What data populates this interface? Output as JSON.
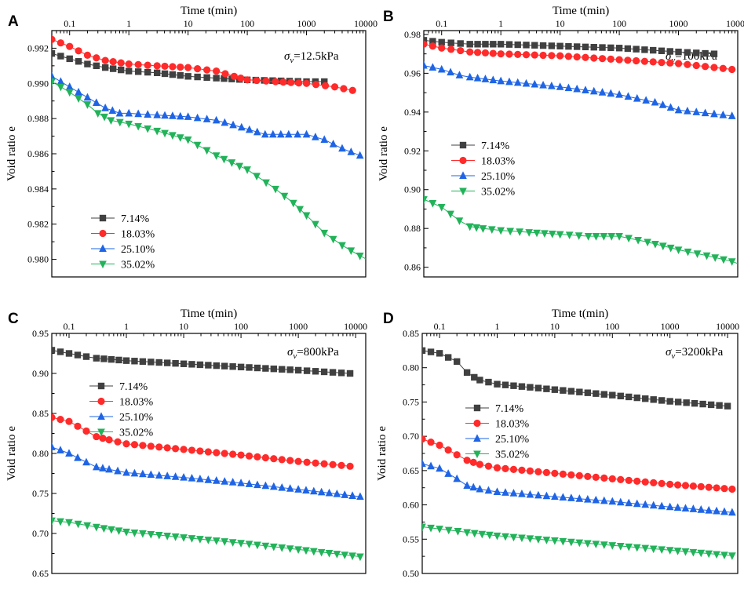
{
  "figure": {
    "colors": {
      "s714": "#404040",
      "s1803": "#ff2b2b",
      "s2510": "#1e64e6",
      "s3502": "#22b35a"
    }
  },
  "chart_data": [
    {
      "id": "A",
      "type": "line",
      "panel_label": "A",
      "title": "",
      "xlabel": "Time t(min)",
      "ylabel": "Void ratio e",
      "xscale": "log",
      "xlim": [
        0.05,
        10000
      ],
      "ylim": [
        0.979,
        0.993
      ],
      "xticks": [
        0.1,
        1,
        10,
        100,
        1000,
        10000
      ],
      "xtick_labels": [
        "0.1",
        "1",
        "10",
        "100",
        "1000",
        "10000"
      ],
      "yticks": [
        0.98,
        0.982,
        0.984,
        0.986,
        0.988,
        0.99,
        0.992
      ],
      "ytick_labels": [
        "0.980",
        "0.982",
        "0.984",
        "0.986",
        "0.988",
        "0.990",
        "0.992"
      ],
      "annotation": {
        "symbol": "σ",
        "subscript": "v",
        "text": "=12.5kPa"
      },
      "legend_position": "bottom-left",
      "series": [
        {
          "name": "7.14%",
          "marker": "square",
          "color": "#404040",
          "points": [
            [
              0.05,
              0.9917
            ],
            [
              0.1,
              0.9914
            ],
            [
              0.2,
              0.9911
            ],
            [
              0.4,
              0.9909
            ],
            [
              1,
              0.9907
            ],
            [
              3,
              0.9906
            ],
            [
              10,
              0.9904
            ],
            [
              30,
              0.9903
            ],
            [
              100,
              0.9902
            ],
            [
              1000,
              0.9901
            ],
            [
              2000,
              0.9901
            ]
          ]
        },
        {
          "name": "18.03%",
          "marker": "circle",
          "color": "#ff2b2b",
          "points": [
            [
              0.05,
              0.9925
            ],
            [
              0.1,
              0.9921
            ],
            [
              0.2,
              0.9916
            ],
            [
              0.4,
              0.9913
            ],
            [
              1,
              0.9911
            ],
            [
              3,
              0.991
            ],
            [
              10,
              0.9909
            ],
            [
              30,
              0.9907
            ],
            [
              60,
              0.9904
            ],
            [
              100,
              0.9902
            ],
            [
              300,
              0.9901
            ],
            [
              1000,
              0.99
            ],
            [
              3000,
              0.9898
            ],
            [
              6000,
              0.9896
            ]
          ]
        },
        {
          "name": "25.10%",
          "marker": "triangle-up",
          "color": "#1e64e6",
          "points": [
            [
              0.05,
              0.9904
            ],
            [
              0.1,
              0.9898
            ],
            [
              0.2,
              0.9892
            ],
            [
              0.4,
              0.9886
            ],
            [
              0.7,
              0.9883
            ],
            [
              1,
              0.9883
            ],
            [
              3,
              0.9882
            ],
            [
              10,
              0.9881
            ],
            [
              30,
              0.9879
            ],
            [
              80,
              0.9875
            ],
            [
              200,
              0.9871
            ],
            [
              500,
              0.9871
            ],
            [
              1000,
              0.9871
            ],
            [
              2000,
              0.9868
            ],
            [
              4000,
              0.9863
            ],
            [
              8000,
              0.9859
            ]
          ]
        },
        {
          "name": "35.02%",
          "marker": "triangle-down",
          "color": "#22b35a",
          "points": [
            [
              0.05,
              0.9901
            ],
            [
              0.1,
              0.9895
            ],
            [
              0.2,
              0.9888
            ],
            [
              0.3,
              0.9883
            ],
            [
              0.5,
              0.9879
            ],
            [
              1,
              0.9877
            ],
            [
              3,
              0.9873
            ],
            [
              10,
              0.9868
            ],
            [
              30,
              0.9859
            ],
            [
              100,
              0.9851
            ],
            [
              300,
              0.984
            ],
            [
              600,
              0.9832
            ],
            [
              1000,
              0.9825
            ],
            [
              2000,
              0.9815
            ],
            [
              4000,
              0.9808
            ],
            [
              8000,
              0.9802
            ],
            [
              12000,
              0.9799
            ]
          ]
        }
      ]
    },
    {
      "id": "B",
      "type": "line",
      "panel_label": "B",
      "title": "",
      "xlabel": "Time t(min)",
      "ylabel": "Void ratio e",
      "xscale": "log",
      "xlim": [
        0.05,
        10000
      ],
      "ylim": [
        0.855,
        0.982
      ],
      "xticks": [
        0.1,
        1,
        10,
        100,
        1000,
        10000
      ],
      "xtick_labels": [
        "0.1",
        "1",
        "10",
        "100",
        "1000",
        "10000"
      ],
      "yticks": [
        0.86,
        0.88,
        0.9,
        0.92,
        0.94,
        0.96,
        0.98
      ],
      "ytick_labels": [
        "0.86",
        "0.88",
        "0.90",
        "0.92",
        "0.94",
        "0.96",
        "0.98"
      ],
      "annotation": {
        "symbol": "σ",
        "subscript": "v",
        "text": "=100kPa"
      },
      "legend_position": "middle-left",
      "series": [
        {
          "name": "7.14%",
          "marker": "square",
          "color": "#404040",
          "points": [
            [
              0.05,
              0.977
            ],
            [
              0.1,
              0.976
            ],
            [
              0.3,
              0.975
            ],
            [
              1,
              0.975
            ],
            [
              10,
              0.974
            ],
            [
              100,
              0.973
            ],
            [
              1000,
              0.971
            ],
            [
              4000,
              0.97
            ]
          ]
        },
        {
          "name": "18.03%",
          "marker": "circle",
          "color": "#ff2b2b",
          "points": [
            [
              0.05,
              0.975
            ],
            [
              0.1,
              0.973
            ],
            [
              0.3,
              0.971
            ],
            [
              1,
              0.97
            ],
            [
              10,
              0.969
            ],
            [
              100,
              0.967
            ],
            [
              1000,
              0.965
            ],
            [
              8000,
              0.962
            ]
          ]
        },
        {
          "name": "25.10%",
          "marker": "triangle-up",
          "color": "#1e64e6",
          "points": [
            [
              0.05,
              0.964
            ],
            [
              0.1,
              0.962
            ],
            [
              0.2,
              0.959
            ],
            [
              0.3,
              0.958
            ],
            [
              1,
              0.956
            ],
            [
              10,
              0.953
            ],
            [
              100,
              0.949
            ],
            [
              400,
              0.945
            ],
            [
              1000,
              0.941
            ],
            [
              8000,
              0.938
            ]
          ]
        },
        {
          "name": "35.02%",
          "marker": "triangle-down",
          "color": "#22b35a",
          "points": [
            [
              0.05,
              0.895
            ],
            [
              0.1,
              0.891
            ],
            [
              0.2,
              0.884
            ],
            [
              0.3,
              0.881
            ],
            [
              0.5,
              0.88
            ],
            [
              1,
              0.879
            ],
            [
              3,
              0.878
            ],
            [
              10,
              0.877
            ],
            [
              30,
              0.876
            ],
            [
              100,
              0.876
            ],
            [
              300,
              0.873
            ],
            [
              1000,
              0.869
            ],
            [
              3000,
              0.866
            ],
            [
              8000,
              0.863
            ],
            [
              12000,
              0.861
            ]
          ]
        }
      ]
    },
    {
      "id": "C",
      "type": "line",
      "panel_label": "C",
      "title": "",
      "xlabel": "Time t(min)",
      "ylabel": "Void ratio e",
      "xscale": "log",
      "xlim": [
        0.05,
        15000
      ],
      "ylim": [
        0.65,
        0.95
      ],
      "xticks": [
        0.1,
        1,
        10,
        100,
        1000,
        10000
      ],
      "xtick_labels": [
        "0.1",
        "1",
        "10",
        "100",
        "1000",
        "10000"
      ],
      "yticks": [
        0.65,
        0.7,
        0.75,
        0.8,
        0.85,
        0.9,
        0.95
      ],
      "ytick_labels": [
        "0.65",
        "0.70",
        "0.75",
        "0.80",
        "0.85",
        "0.90",
        "0.95"
      ],
      "annotation": {
        "symbol": "σ",
        "subscript": "v",
        "text": "=800kPa"
      },
      "legend_position": "upper-middle-left",
      "series": [
        {
          "name": "7.14%",
          "marker": "square",
          "color": "#404040",
          "points": [
            [
              0.05,
              0.929
            ],
            [
              0.1,
              0.925
            ],
            [
              0.2,
              0.921
            ],
            [
              0.3,
              0.919
            ],
            [
              1,
              0.916
            ],
            [
              10,
              0.912
            ],
            [
              100,
              0.908
            ],
            [
              1000,
              0.904
            ],
            [
              8000,
              0.9
            ]
          ]
        },
        {
          "name": "18.03%",
          "marker": "circle",
          "color": "#ff2b2b",
          "points": [
            [
              0.05,
              0.845
            ],
            [
              0.1,
              0.84
            ],
            [
              0.2,
              0.828
            ],
            [
              0.3,
              0.821
            ],
            [
              0.5,
              0.817
            ],
            [
              1,
              0.812
            ],
            [
              10,
              0.805
            ],
            [
              100,
              0.798
            ],
            [
              1000,
              0.79
            ],
            [
              8000,
              0.784
            ]
          ]
        },
        {
          "name": "25.10%",
          "marker": "triangle-up",
          "color": "#1e64e6",
          "points": [
            [
              0.05,
              0.808
            ],
            [
              0.1,
              0.8
            ],
            [
              0.2,
              0.789
            ],
            [
              0.3,
              0.783
            ],
            [
              0.5,
              0.78
            ],
            [
              1,
              0.776
            ],
            [
              10,
              0.77
            ],
            [
              100,
              0.763
            ],
            [
              1000,
              0.755
            ],
            [
              12000,
              0.746
            ]
          ]
        },
        {
          "name": "35.02%",
          "marker": "triangle-down",
          "color": "#22b35a",
          "points": [
            [
              0.05,
              0.716
            ],
            [
              0.1,
              0.714
            ],
            [
              0.3,
              0.708
            ],
            [
              1,
              0.702
            ],
            [
              10,
              0.695
            ],
            [
              100,
              0.688
            ],
            [
              1000,
              0.68
            ],
            [
              12000,
              0.671
            ]
          ]
        }
      ]
    },
    {
      "id": "D",
      "type": "line",
      "panel_label": "D",
      "title": "",
      "xlabel": "Time t(min)",
      "ylabel": "Void ratio e",
      "xscale": "log",
      "xlim": [
        0.05,
        15000
      ],
      "ylim": [
        0.5,
        0.85
      ],
      "xticks": [
        0.1,
        1,
        10,
        100,
        1000,
        10000
      ],
      "xtick_labels": [
        "0.1",
        "1",
        "10",
        "100",
        "1000",
        "10000"
      ],
      "yticks": [
        0.5,
        0.55,
        0.6,
        0.65,
        0.7,
        0.75,
        0.8,
        0.85
      ],
      "ytick_labels": [
        "0.50",
        "0.55",
        "0.60",
        "0.65",
        "0.70",
        "0.75",
        "0.80",
        "0.85"
      ],
      "annotation": {
        "symbol": "σ",
        "subscript": "v",
        "text": "=3200kPa"
      },
      "legend_position": "middle-left",
      "series": [
        {
          "name": "7.14%",
          "marker": "square",
          "color": "#404040",
          "points": [
            [
              0.05,
              0.825
            ],
            [
              0.1,
              0.821
            ],
            [
              0.2,
              0.809
            ],
            [
              0.3,
              0.793
            ],
            [
              0.4,
              0.786
            ],
            [
              0.5,
              0.782
            ],
            [
              1,
              0.776
            ],
            [
              10,
              0.768
            ],
            [
              100,
              0.76
            ],
            [
              1000,
              0.751
            ],
            [
              10000,
              0.744
            ]
          ]
        },
        {
          "name": "18.03%",
          "marker": "circle",
          "color": "#ff2b2b",
          "points": [
            [
              0.05,
              0.696
            ],
            [
              0.1,
              0.687
            ],
            [
              0.2,
              0.673
            ],
            [
              0.3,
              0.665
            ],
            [
              0.5,
              0.659
            ],
            [
              1,
              0.654
            ],
            [
              10,
              0.646
            ],
            [
              100,
              0.638
            ],
            [
              1000,
              0.63
            ],
            [
              12000,
              0.623
            ]
          ]
        },
        {
          "name": "25.10%",
          "marker": "triangle-up",
          "color": "#1e64e6",
          "points": [
            [
              0.05,
              0.66
            ],
            [
              0.1,
              0.653
            ],
            [
              0.2,
              0.638
            ],
            [
              0.3,
              0.628
            ],
            [
              0.5,
              0.623
            ],
            [
              1,
              0.619
            ],
            [
              10,
              0.612
            ],
            [
              100,
              0.605
            ],
            [
              1000,
              0.597
            ],
            [
              12000,
              0.589
            ]
          ]
        },
        {
          "name": "35.02%",
          "marker": "triangle-down",
          "color": "#22b35a",
          "points": [
            [
              0.05,
              0.568
            ],
            [
              0.1,
              0.565
            ],
            [
              0.3,
              0.56
            ],
            [
              1,
              0.555
            ],
            [
              10,
              0.548
            ],
            [
              100,
              0.541
            ],
            [
              1000,
              0.534
            ],
            [
              12000,
              0.526
            ]
          ]
        }
      ]
    }
  ]
}
